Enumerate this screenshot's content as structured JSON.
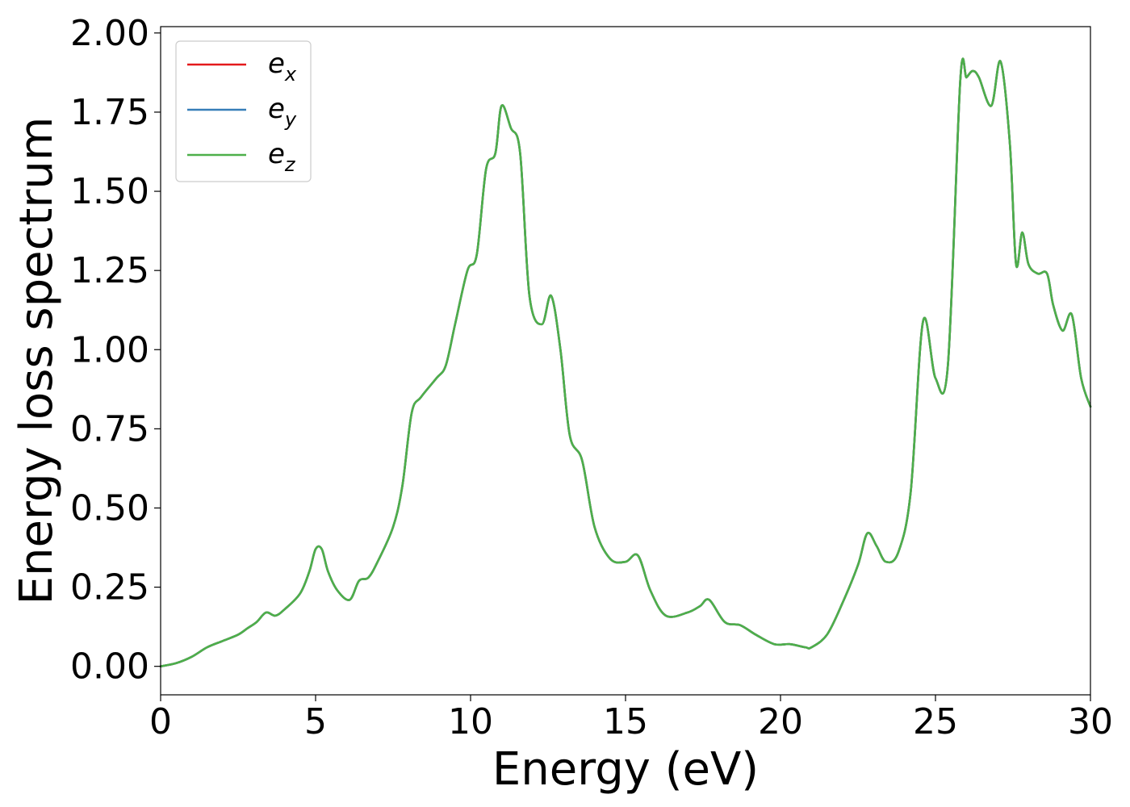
{
  "chart_data": {
    "type": "line",
    "title": "",
    "xlabel": "Energy (eV)",
    "ylabel": "Energy loss spectrum",
    "xlim": [
      0,
      30
    ],
    "ylim": [
      -0.09,
      2.02
    ],
    "xticks": [
      0,
      5,
      10,
      15,
      20,
      25,
      30
    ],
    "xtick_labels": [
      "0",
      "5",
      "10",
      "15",
      "20",
      "25",
      "30"
    ],
    "yticks": [
      0,
      0.25,
      0.5,
      0.75,
      1.0,
      1.25,
      1.5,
      1.75,
      2.0
    ],
    "ytick_labels": [
      "0.00",
      "0.25",
      "0.50",
      "0.75",
      "1.00",
      "1.25",
      "1.50",
      "1.75",
      "2.00"
    ],
    "grid": false,
    "legend": {
      "placement": "top-left"
    },
    "x": [
      0,
      0.5,
      1.0,
      1.5,
      2.0,
      2.5,
      2.8,
      3.1,
      3.4,
      3.7,
      4.0,
      4.5,
      4.8,
      5.0,
      5.2,
      5.4,
      5.7,
      6.1,
      6.4,
      6.7,
      7.0,
      7.5,
      7.8,
      8.1,
      8.4,
      8.9,
      9.2,
      9.5,
      9.9,
      10.2,
      10.5,
      10.8,
      11.0,
      11.3,
      11.6,
      11.9,
      12.3,
      12.6,
      12.9,
      13.2,
      13.6,
      14.0,
      14.5,
      15.0,
      15.4,
      15.8,
      16.3,
      17.0,
      17.4,
      17.7,
      18.2,
      18.7,
      19.2,
      19.8,
      20.3,
      20.8,
      21.0,
      21.5,
      22.0,
      22.5,
      22.8,
      23.1,
      23.4,
      23.8,
      24.2,
      24.6,
      25.0,
      25.4,
      25.8,
      26.0,
      26.2,
      26.4,
      26.8,
      27.1,
      27.4,
      27.6,
      27.8,
      28.0,
      28.3,
      28.6,
      28.8,
      29.1,
      29.4,
      29.7,
      30.0
    ],
    "series": [
      {
        "name": "e_x",
        "color": "#e41a1c",
        "values": [
          0.0,
          0.01,
          0.03,
          0.06,
          0.08,
          0.1,
          0.12,
          0.14,
          0.17,
          0.16,
          0.18,
          0.23,
          0.3,
          0.37,
          0.37,
          0.3,
          0.24,
          0.21,
          0.27,
          0.28,
          0.33,
          0.44,
          0.57,
          0.8,
          0.85,
          0.91,
          0.95,
          1.08,
          1.25,
          1.3,
          1.57,
          1.62,
          1.77,
          1.7,
          1.62,
          1.17,
          1.08,
          1.17,
          1.0,
          0.73,
          0.65,
          0.44,
          0.34,
          0.33,
          0.35,
          0.24,
          0.16,
          0.17,
          0.19,
          0.21,
          0.14,
          0.13,
          0.1,
          0.07,
          0.07,
          0.06,
          0.06,
          0.1,
          0.2,
          0.32,
          0.42,
          0.38,
          0.33,
          0.36,
          0.55,
          1.09,
          0.91,
          0.95,
          1.85,
          1.86,
          1.88,
          1.86,
          1.77,
          1.91,
          1.65,
          1.27,
          1.37,
          1.27,
          1.24,
          1.24,
          1.14,
          1.06,
          1.11,
          0.91,
          0.82
        ]
      },
      {
        "name": "e_y",
        "color": "#377eb8",
        "values": [
          0.0,
          0.01,
          0.03,
          0.06,
          0.08,
          0.1,
          0.12,
          0.14,
          0.17,
          0.16,
          0.18,
          0.23,
          0.3,
          0.37,
          0.37,
          0.3,
          0.24,
          0.21,
          0.27,
          0.28,
          0.33,
          0.44,
          0.57,
          0.8,
          0.85,
          0.91,
          0.95,
          1.08,
          1.25,
          1.3,
          1.57,
          1.62,
          1.77,
          1.7,
          1.62,
          1.17,
          1.08,
          1.17,
          1.0,
          0.73,
          0.65,
          0.44,
          0.34,
          0.33,
          0.35,
          0.24,
          0.16,
          0.17,
          0.19,
          0.21,
          0.14,
          0.13,
          0.1,
          0.07,
          0.07,
          0.06,
          0.06,
          0.1,
          0.2,
          0.32,
          0.42,
          0.38,
          0.33,
          0.36,
          0.55,
          1.09,
          0.91,
          0.95,
          1.85,
          1.86,
          1.88,
          1.86,
          1.77,
          1.91,
          1.65,
          1.27,
          1.37,
          1.27,
          1.24,
          1.24,
          1.14,
          1.06,
          1.11,
          0.91,
          0.82
        ]
      },
      {
        "name": "e_z",
        "color": "#4daf4a",
        "values": [
          0.0,
          0.01,
          0.03,
          0.06,
          0.08,
          0.1,
          0.12,
          0.14,
          0.17,
          0.16,
          0.18,
          0.23,
          0.3,
          0.37,
          0.37,
          0.3,
          0.24,
          0.21,
          0.27,
          0.28,
          0.33,
          0.44,
          0.57,
          0.8,
          0.85,
          0.91,
          0.95,
          1.08,
          1.25,
          1.3,
          1.57,
          1.62,
          1.77,
          1.7,
          1.62,
          1.17,
          1.08,
          1.17,
          1.0,
          0.73,
          0.65,
          0.44,
          0.34,
          0.33,
          0.35,
          0.24,
          0.16,
          0.17,
          0.19,
          0.21,
          0.14,
          0.13,
          0.1,
          0.07,
          0.07,
          0.06,
          0.06,
          0.1,
          0.2,
          0.32,
          0.42,
          0.38,
          0.33,
          0.36,
          0.55,
          1.09,
          0.91,
          0.95,
          1.85,
          1.86,
          1.88,
          1.86,
          1.77,
          1.91,
          1.65,
          1.27,
          1.37,
          1.27,
          1.24,
          1.24,
          1.14,
          1.06,
          1.11,
          0.91,
          0.82
        ]
      }
    ]
  },
  "legend_items": [
    {
      "base": "e",
      "sub": "x"
    },
    {
      "base": "e",
      "sub": "y"
    },
    {
      "base": "e",
      "sub": "z"
    }
  ]
}
